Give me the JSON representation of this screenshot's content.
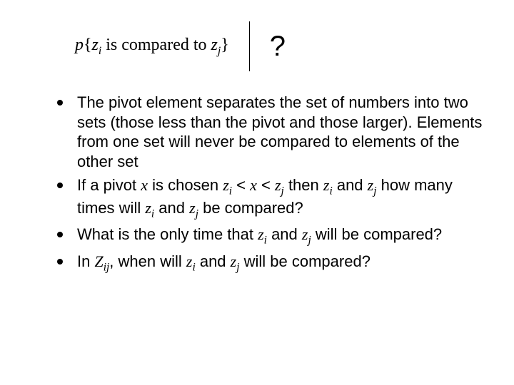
{
  "formula": {
    "p": "p",
    "lbrace": "{",
    "z": "z",
    "sub_i": "i",
    "middle_text": " is compared to ",
    "z2": "z",
    "sub_j": "j",
    "rbrace": "}",
    "qmark": "?"
  },
  "bullets": [
    {
      "html": "The pivot element separates the set of numbers into two sets (those less than the pivot and those larger). Elements from one set will never be compared to elements of the other set"
    },
    {
      "html": "If a pivot <span class=\"mi\">x</span> is chosen <span class=\"mi\">z<sub>i</sub></span> &lt; <span class=\"mi\">x</span> &lt; <span class=\"mi\">z<sub>j</sub></span> then <span class=\"mi\">z<sub>i</sub></span> and <span class=\"mi\">z<sub>j</sub></span> how many times will <span class=\"mi\">z<sub>i</sub></span> and <span class=\"mi\">z<sub>j</sub></span> be compared?"
    },
    {
      "html": "What is the only time that <span class=\"mi\">z<sub>i</sub></span> and <span class=\"mi\">z<sub>j</sub></span> will be compared?"
    },
    {
      "html": "In <span class=\"mi\">Z<sub>ij</sub></span>, when will <span class=\"mi\">z<sub>i</sub></span> and <span class=\"mi\">z<sub>j</sub></span> will be compared?"
    }
  ],
  "style": {
    "background_color": "#ffffff",
    "text_color": "#000000",
    "bullet_color": "#000000",
    "body_fontsize": 22,
    "formula_fontsize": 24,
    "qmark_fontsize": 40,
    "slide_width": 720,
    "slide_height": 540
  }
}
